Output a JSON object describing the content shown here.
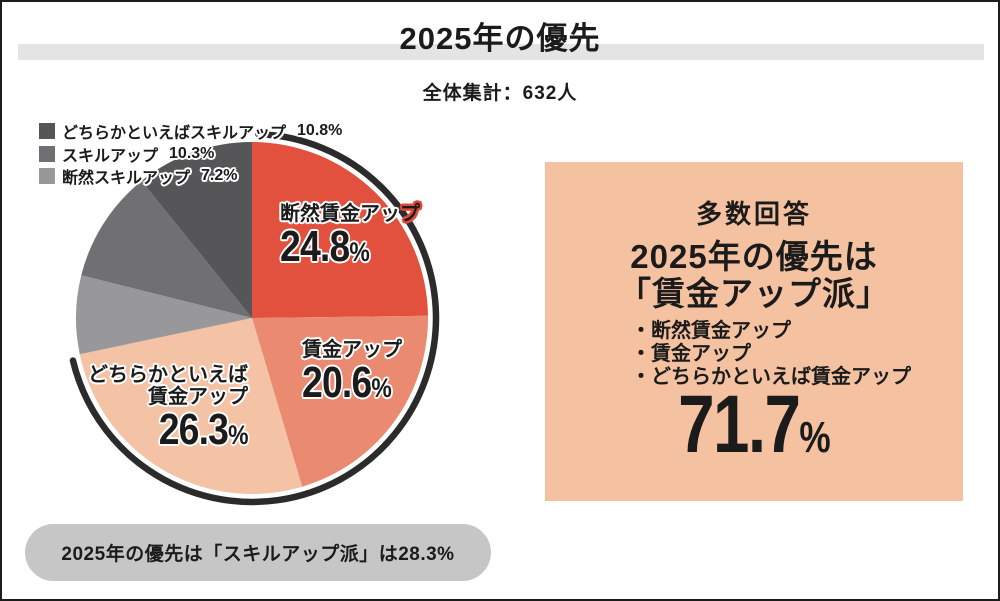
{
  "page": {
    "title": "2025年の優先",
    "subtitle": "全体集計：632人"
  },
  "chart_data": {
    "type": "pie",
    "title": "2025年の優先",
    "sample_note": "全体集計：632人",
    "start_angle_deg": 0,
    "direction": "clockwise",
    "slices": [
      {
        "label": "断然賃金アップ",
        "value": 24.8,
        "color": "#e2503e",
        "group": "賃金アップ派"
      },
      {
        "label": "賃金アップ",
        "value": 20.6,
        "color": "#ea8a70",
        "group": "賃金アップ派"
      },
      {
        "label": "どちらかといえば賃金アップ",
        "value": 26.3,
        "color": "#f4c2a4",
        "group": "賃金アップ派"
      },
      {
        "label": "断然スキルアップ",
        "value": 7.2,
        "color": "#98989b",
        "group": "スキルアップ派"
      },
      {
        "label": "スキルアップ",
        "value": 10.3,
        "color": "#707074",
        "group": "スキルアップ派"
      },
      {
        "label": "どちらかといえばスキルアップ",
        "value": 10.8,
        "color": "#565659",
        "group": "スキルアップ派"
      }
    ],
    "highlight_arc": {
      "covers": "賃金アップ派",
      "percent": 71.7,
      "color": "#2b2b2b"
    },
    "legend_position": "top-left",
    "grid": false
  },
  "legend": {
    "items": [
      {
        "label": "どちらかといえばスキルアップ",
        "pct": "10.8%",
        "color": "#565659"
      },
      {
        "label": "スキルアップ",
        "pct": "10.3%",
        "color": "#707074"
      },
      {
        "label": "断然スキルアップ",
        "pct": "7.2%",
        "color": "#98989b"
      }
    ]
  },
  "pie_labels": {
    "dan": {
      "head": "断然賃金アッ",
      "tail": "プ",
      "pct": "24.8",
      "unit": "%"
    },
    "chin": {
      "label": "賃金アップ",
      "pct": "20.6",
      "unit": "%"
    },
    "dochira": {
      "line1": "どちらかといえば",
      "line2": "賃金アップ",
      "pct": "26.3",
      "unit": "%"
    }
  },
  "panel": {
    "bg": "#f5c2a1",
    "kicker": "多数回答",
    "headline_line1": "2025年の優先は",
    "headline_line2": "「賃金アップ派」",
    "bullets": [
      "・断然賃金アップ",
      "・賃金アップ",
      "・どちらかといえば賃金アップ"
    ],
    "big_value": "71.7",
    "big_unit": "%"
  },
  "footer": {
    "note": "2025年の優先は「スキルアップ派」は28.3%"
  }
}
